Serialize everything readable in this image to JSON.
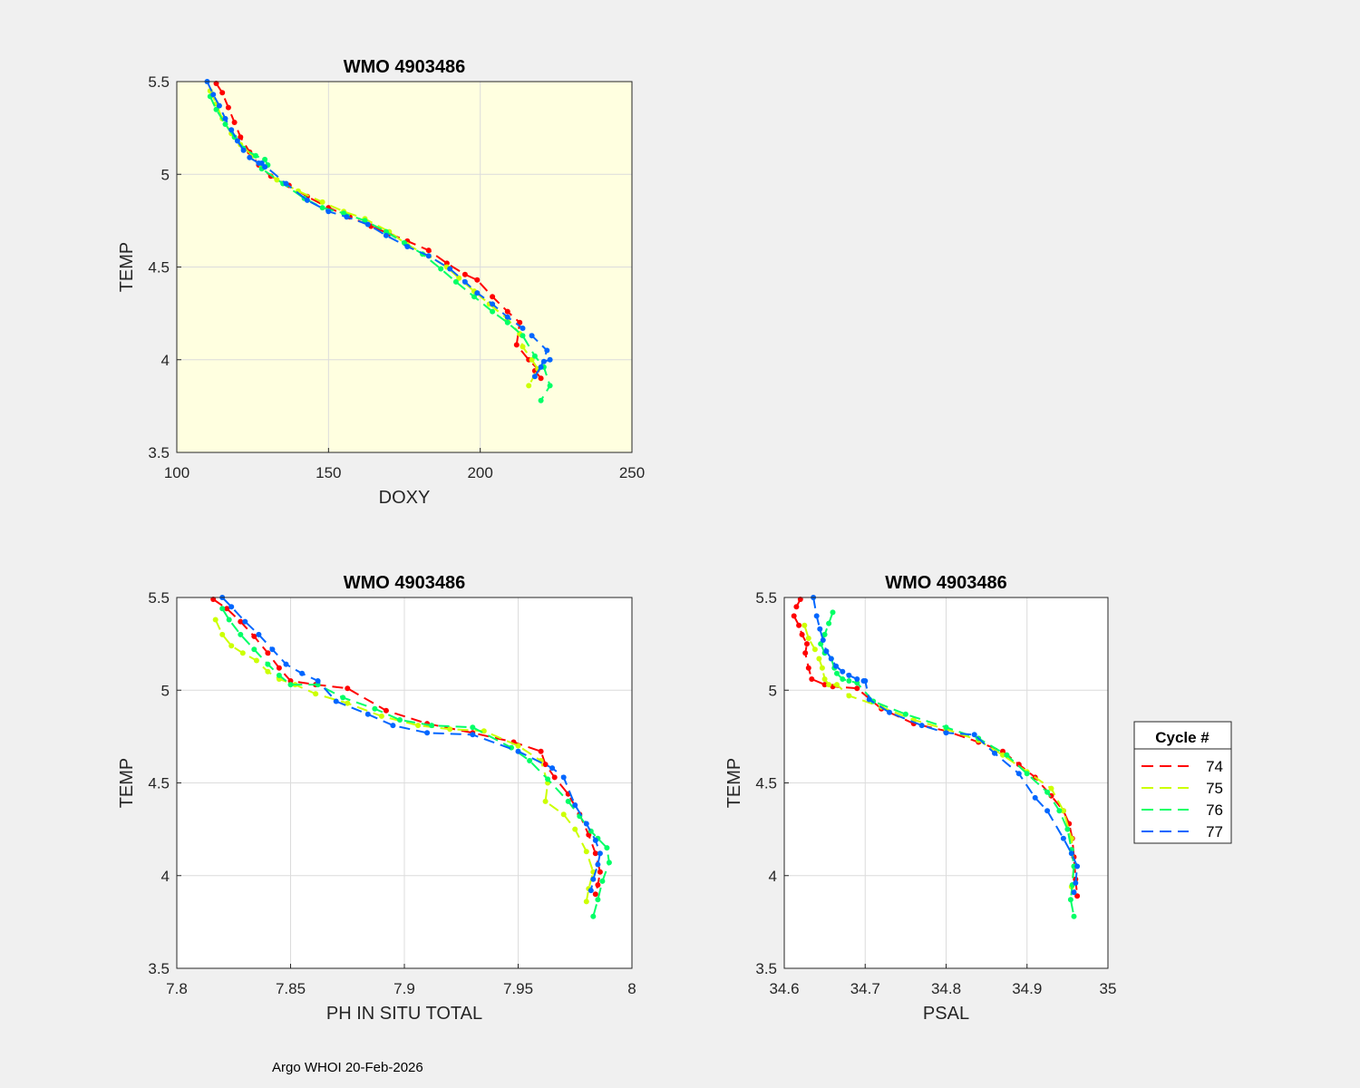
{
  "footer": "Argo WHOI 20-Feb-2026",
  "legend": {
    "title": "Cycle #",
    "entries": [
      {
        "label": "74",
        "color": "#ff0000"
      },
      {
        "label": "75",
        "color": "#ccff00"
      },
      {
        "label": "76",
        "color": "#00ff66"
      },
      {
        "label": "77",
        "color": "#0066ff"
      }
    ]
  },
  "chart_data": [
    {
      "type": "line",
      "title": "WMO 4903486",
      "xlabel": "DOXY",
      "ylabel": "TEMP",
      "xlim": [
        100,
        250
      ],
      "ylim": [
        3.5,
        5.5
      ],
      "xticks": [
        "100",
        "150",
        "200",
        "250"
      ],
      "yticks": [
        "3.5",
        "4",
        "4.5",
        "5",
        "5.5"
      ],
      "background": "#ffffe0",
      "series": [
        {
          "name": "74",
          "color": "#ff0000",
          "x": [
            113,
            115,
            117,
            119,
            121,
            124,
            127,
            131,
            137,
            143,
            150,
            157,
            164,
            170,
            176,
            183,
            189,
            195,
            199,
            204,
            209,
            213,
            212,
            216,
            219,
            220,
            218
          ],
          "y": [
            5.49,
            5.44,
            5.36,
            5.28,
            5.2,
            5.12,
            5.05,
            4.99,
            4.94,
            4.88,
            4.82,
            4.77,
            4.72,
            4.68,
            4.64,
            4.59,
            4.52,
            4.46,
            4.43,
            4.34,
            4.26,
            4.2,
            4.08,
            4.0,
            3.95,
            3.9,
            3.94
          ]
        },
        {
          "name": "75",
          "color": "#ccff00",
          "x": [
            111,
            113,
            115,
            118,
            121,
            125,
            128,
            133,
            140,
            148,
            155,
            162,
            170,
            176,
            183,
            189,
            193,
            198,
            203,
            209,
            213,
            214,
            217,
            219,
            216
          ],
          "y": [
            5.45,
            5.38,
            5.3,
            5.22,
            5.16,
            5.1,
            5.04,
            4.97,
            4.91,
            4.85,
            4.8,
            4.76,
            4.69,
            4.62,
            4.56,
            4.5,
            4.44,
            4.37,
            4.3,
            4.22,
            4.14,
            4.07,
            4.0,
            3.95,
            3.86
          ]
        },
        {
          "name": "76",
          "color": "#00ff66",
          "x": [
            111,
            113,
            116,
            119,
            122,
            126,
            129,
            130,
            128,
            135,
            142,
            148,
            155,
            162,
            169,
            175,
            181,
            187,
            192,
            198,
            204,
            209,
            214,
            218,
            221,
            223,
            220
          ],
          "y": [
            5.42,
            5.35,
            5.27,
            5.2,
            5.14,
            5.1,
            5.08,
            5.05,
            5.03,
            4.95,
            4.87,
            4.82,
            4.79,
            4.75,
            4.69,
            4.63,
            4.57,
            4.49,
            4.42,
            4.34,
            4.26,
            4.2,
            4.13,
            4.02,
            3.96,
            3.86,
            3.78
          ]
        },
        {
          "name": "77",
          "color": "#0066ff",
          "x": [
            110,
            112,
            114,
            116,
            118,
            120,
            122,
            124,
            127,
            129,
            128,
            136,
            143,
            150,
            156,
            163,
            169,
            176,
            183,
            190,
            195,
            199,
            204,
            209,
            214,
            217,
            222,
            220,
            218,
            221,
            223
          ],
          "y": [
            5.5,
            5.43,
            5.37,
            5.3,
            5.24,
            5.18,
            5.13,
            5.09,
            5.06,
            5.04,
            5.06,
            4.95,
            4.86,
            4.8,
            4.77,
            4.73,
            4.67,
            4.61,
            4.56,
            4.49,
            4.42,
            4.36,
            4.3,
            4.23,
            4.17,
            4.13,
            4.05,
            3.96,
            3.91,
            3.99,
            4.0
          ]
        }
      ]
    },
    {
      "type": "line",
      "title": "WMO 4903486",
      "xlabel": "PH IN SITU TOTAL",
      "ylabel": "TEMP",
      "xlim": [
        7.8,
        8
      ],
      "ylim": [
        3.5,
        5.5
      ],
      "xticks": [
        "7.8",
        "7.85",
        "7.9",
        "7.95",
        "8"
      ],
      "yticks": [
        "3.5",
        "4",
        "4.5",
        "5",
        "5.5"
      ],
      "background": "#ffffff",
      "series": [
        {
          "name": "74",
          "color": "#ff0000",
          "x": [
            7.816,
            7.822,
            7.828,
            7.834,
            7.84,
            7.845,
            7.85,
            7.861,
            7.875,
            7.892,
            7.91,
            7.93,
            7.948,
            7.96,
            7.962,
            7.966,
            7.972,
            7.977,
            7.981,
            7.984,
            7.986,
            7.985,
            7.984
          ],
          "y": [
            5.49,
            5.44,
            5.37,
            5.29,
            5.2,
            5.12,
            5.05,
            5.03,
            5.01,
            4.89,
            4.82,
            4.77,
            4.72,
            4.67,
            4.6,
            4.53,
            4.44,
            4.33,
            4.22,
            4.12,
            4.02,
            3.95,
            3.9
          ]
        },
        {
          "name": "75",
          "color": "#ccff00",
          "x": [
            7.817,
            7.82,
            7.824,
            7.829,
            7.835,
            7.84,
            7.845,
            7.852,
            7.861,
            7.875,
            7.89,
            7.906,
            7.92,
            7.935,
            7.95,
            7.96,
            7.963,
            7.962,
            7.97,
            7.975,
            7.98,
            7.983,
            7.981,
            7.98
          ],
          "y": [
            5.38,
            5.3,
            5.24,
            5.2,
            5.16,
            5.1,
            5.06,
            5.03,
            4.98,
            4.93,
            4.86,
            4.81,
            4.79,
            4.78,
            4.7,
            4.62,
            4.5,
            4.4,
            4.33,
            4.25,
            4.13,
            4.02,
            3.93,
            3.86
          ]
        },
        {
          "name": "76",
          "color": "#00ff66",
          "x": [
            7.82,
            7.823,
            7.828,
            7.834,
            7.84,
            7.845,
            7.85,
            7.862,
            7.873,
            7.887,
            7.898,
            7.912,
            7.93,
            7.947,
            7.955,
            7.963,
            7.972,
            7.977,
            7.982,
            7.985,
            7.989,
            7.99,
            7.987,
            7.985,
            7.983
          ],
          "y": [
            5.44,
            5.38,
            5.3,
            5.22,
            5.14,
            5.08,
            5.03,
            5.03,
            4.96,
            4.9,
            4.84,
            4.81,
            4.8,
            4.69,
            4.62,
            4.52,
            4.4,
            4.32,
            4.24,
            4.2,
            4.15,
            4.07,
            3.97,
            3.87,
            3.78
          ]
        },
        {
          "name": "77",
          "color": "#0066ff",
          "x": [
            7.82,
            7.824,
            7.83,
            7.836,
            7.842,
            7.848,
            7.855,
            7.862,
            7.87,
            7.884,
            7.895,
            7.91,
            7.93,
            7.95,
            7.965,
            7.97,
            7.975,
            7.98,
            7.984,
            7.986,
            7.985,
            7.983,
            7.982
          ],
          "y": [
            5.5,
            5.45,
            5.37,
            5.3,
            5.22,
            5.14,
            5.09,
            5.05,
            4.94,
            4.87,
            4.81,
            4.77,
            4.76,
            4.67,
            4.58,
            4.53,
            4.38,
            4.28,
            4.19,
            4.12,
            4.06,
            3.98,
            3.92
          ]
        }
      ]
    },
    {
      "type": "line",
      "title": "WMO 4903486",
      "xlabel": "PSAL",
      "ylabel": "TEMP",
      "xlim": [
        34.6,
        35
      ],
      "ylim": [
        3.5,
        5.5
      ],
      "xticks": [
        "34.6",
        "34.7",
        "34.8",
        "34.9",
        "35"
      ],
      "yticks": [
        "3.5",
        "4",
        "4.5",
        "5",
        "5.5"
      ],
      "background": "#ffffff",
      "series": [
        {
          "name": "74",
          "color": "#ff0000",
          "x": [
            34.62,
            34.615,
            34.612,
            34.618,
            34.622,
            34.628,
            34.626,
            34.63,
            34.634,
            34.65,
            34.66,
            34.69,
            34.72,
            34.76,
            34.8,
            34.84,
            34.87,
            34.89,
            34.91,
            34.93,
            34.945,
            34.952,
            34.956,
            34.958,
            34.96,
            34.962
          ],
          "y": [
            5.49,
            5.45,
            5.4,
            5.35,
            5.3,
            5.25,
            5.2,
            5.12,
            5.06,
            5.03,
            5.02,
            5.01,
            4.9,
            4.82,
            4.78,
            4.72,
            4.67,
            4.6,
            4.53,
            4.43,
            4.35,
            4.28,
            4.2,
            4.1,
            3.98,
            3.89
          ]
        },
        {
          "name": "75",
          "color": "#ccff00",
          "x": [
            34.625,
            34.63,
            34.638,
            34.643,
            34.647,
            34.65,
            34.655,
            34.665,
            34.68,
            34.72,
            34.76,
            34.8,
            34.84,
            34.87,
            34.9,
            34.93,
            34.945,
            34.955,
            34.958,
            34.955
          ],
          "y": [
            5.35,
            5.28,
            5.22,
            5.17,
            5.12,
            5.06,
            5.03,
            5.03,
            4.97,
            4.91,
            4.84,
            4.79,
            4.73,
            4.65,
            4.56,
            4.47,
            4.35,
            4.2,
            4.05,
            3.94
          ]
        },
        {
          "name": "76",
          "color": "#00ff66",
          "x": [
            34.66,
            34.655,
            34.65,
            34.645,
            34.65,
            34.658,
            34.662,
            34.665,
            34.672,
            34.68,
            34.69,
            34.71,
            34.75,
            34.8,
            34.84,
            34.875,
            34.9,
            34.925,
            34.94,
            34.95,
            34.955,
            34.958,
            34.956,
            34.954,
            34.958
          ],
          "y": [
            5.42,
            5.36,
            5.3,
            5.25,
            5.2,
            5.17,
            5.12,
            5.09,
            5.06,
            5.05,
            5.04,
            4.94,
            4.87,
            4.8,
            4.74,
            4.65,
            4.55,
            4.45,
            4.35,
            4.25,
            4.14,
            4.05,
            3.95,
            3.87,
            3.78
          ]
        },
        {
          "name": "77",
          "color": "#0066ff",
          "x": [
            34.636,
            34.64,
            34.644,
            34.648,
            34.652,
            34.658,
            34.664,
            34.672,
            34.68,
            34.69,
            34.698,
            34.7,
            34.705,
            34.73,
            34.77,
            34.8,
            34.835,
            34.86,
            34.89,
            34.91,
            34.925,
            34.945,
            34.955,
            34.962,
            34.96,
            34.958
          ],
          "y": [
            5.5,
            5.4,
            5.33,
            5.27,
            5.21,
            5.17,
            5.13,
            5.1,
            5.08,
            5.06,
            5.05,
            5.05,
            4.95,
            4.88,
            4.81,
            4.77,
            4.76,
            4.66,
            4.55,
            4.42,
            4.35,
            4.2,
            4.12,
            4.05,
            3.96,
            3.91
          ]
        }
      ]
    }
  ]
}
